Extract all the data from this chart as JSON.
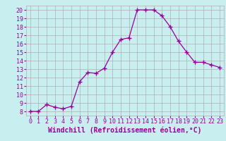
{
  "x": [
    0,
    1,
    2,
    3,
    4,
    5,
    6,
    7,
    8,
    9,
    10,
    11,
    12,
    13,
    14,
    15,
    16,
    17,
    18,
    19,
    20,
    21,
    22,
    23
  ],
  "y": [
    8,
    8,
    8.8,
    8.5,
    8.3,
    8.6,
    11.5,
    12.6,
    12.5,
    13.1,
    15.0,
    16.5,
    16.7,
    20.0,
    20.0,
    20.0,
    19.3,
    18.0,
    16.3,
    15.0,
    13.8,
    13.8,
    13.5,
    13.2
  ],
  "line_color": "#990099",
  "marker": "+",
  "marker_size": 4,
  "bg_color": "#c8eef0",
  "grid_color": "#b0b0b0",
  "xlabel": "Windchill (Refroidissement éolien,°C)",
  "xlabel_color": "#990099",
  "ylabel_ticks": [
    8,
    9,
    10,
    11,
    12,
    13,
    14,
    15,
    16,
    17,
    18,
    19,
    20
  ],
  "xlim": [
    -0.5,
    23.5
  ],
  "ylim": [
    7.5,
    20.5
  ],
  "tick_color": "#990099",
  "tick_fontsize": 6,
  "xlabel_fontsize": 7
}
